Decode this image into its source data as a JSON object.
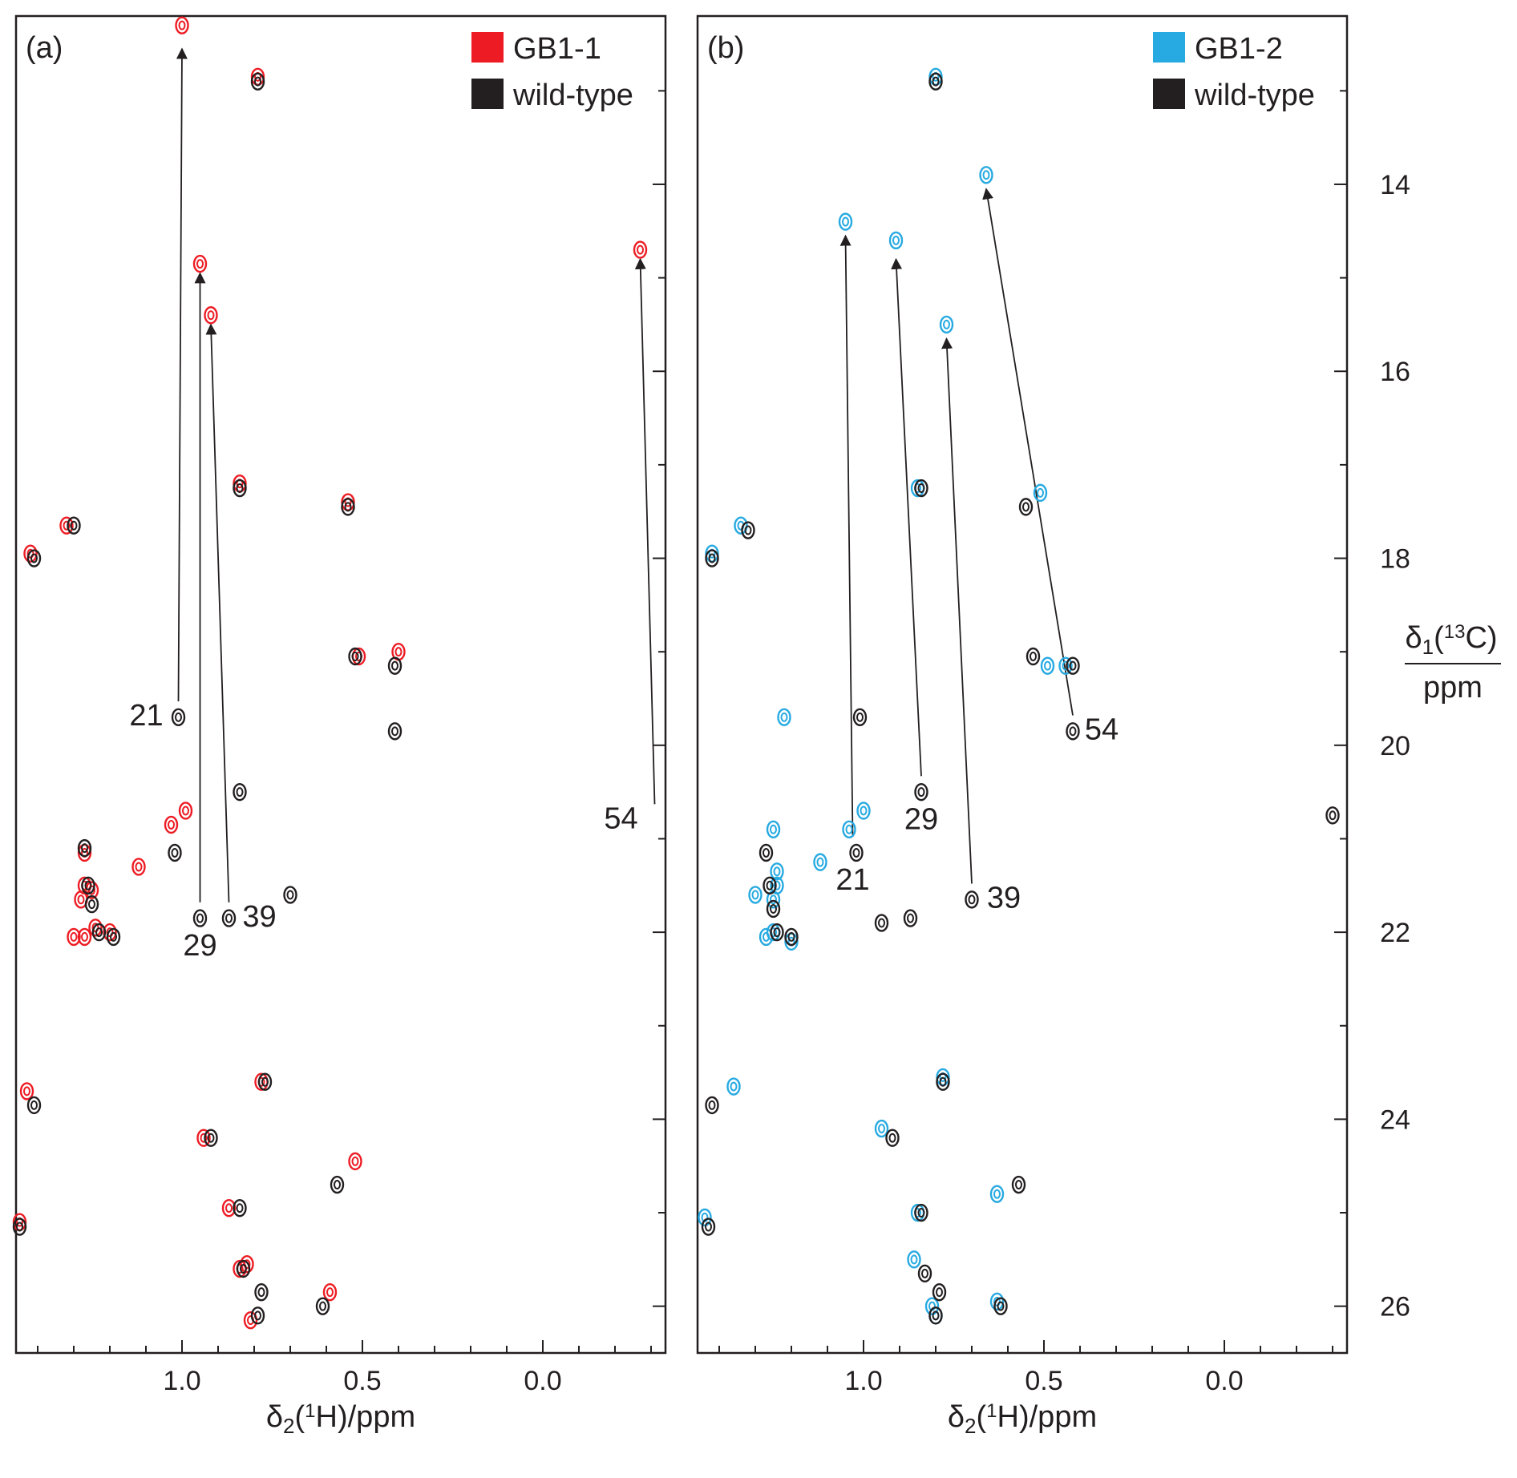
{
  "chart_data": [
    {
      "type": "scatter",
      "subtype": "2D NMR HSQC overlay",
      "panel_label": "(a)",
      "xlabel": "δ2(1H)/ppm",
      "x_ticks": [
        "1.0",
        "0.5",
        "0.0"
      ],
      "x_tick_values": [
        1.0,
        0.5,
        0.0
      ],
      "xlim": [
        1.46,
        -0.34
      ],
      "ylim": [
        12.2,
        26.5
      ],
      "x_reversed": true,
      "y_reversed": true,
      "legend_position": "top-right",
      "series": [
        {
          "name": "GB1-1",
          "color": "#ed1c24",
          "points": [
            [
              1.0,
              12.3
            ],
            [
              0.79,
              12.85
            ],
            [
              0.95,
              14.85
            ],
            [
              0.92,
              15.4
            ],
            [
              -0.27,
              14.7
            ],
            [
              0.84,
              17.2
            ],
            [
              0.54,
              17.4
            ],
            [
              1.32,
              17.65
            ],
            [
              1.42,
              17.95
            ],
            [
              0.51,
              19.05
            ],
            [
              0.4,
              19.0
            ],
            [
              1.03,
              20.85
            ],
            [
              0.99,
              20.7
            ],
            [
              1.27,
              21.15
            ],
            [
              1.12,
              21.3
            ],
            [
              1.27,
              21.5
            ],
            [
              1.28,
              21.65
            ],
            [
              1.25,
              21.55
            ],
            [
              1.27,
              22.05
            ],
            [
              1.3,
              22.05
            ],
            [
              1.2,
              22.0
            ],
            [
              1.24,
              21.95
            ],
            [
              1.43,
              23.7
            ],
            [
              0.78,
              23.6
            ],
            [
              0.94,
              24.2
            ],
            [
              0.52,
              24.45
            ],
            [
              0.87,
              24.95
            ],
            [
              0.84,
              25.6
            ],
            [
              0.82,
              25.55
            ],
            [
              0.59,
              25.85
            ],
            [
              0.81,
              26.15
            ],
            [
              1.45,
              25.1
            ]
          ]
        },
        {
          "name": "wild-type",
          "color": "#231f20",
          "points": [
            [
              0.79,
              12.9
            ],
            [
              0.84,
              17.25
            ],
            [
              0.54,
              17.45
            ],
            [
              1.3,
              17.65
            ],
            [
              1.41,
              18.0
            ],
            [
              0.52,
              19.05
            ],
            [
              0.41,
              19.15
            ],
            [
              0.41,
              19.85
            ],
            [
              1.01,
              19.7
            ],
            [
              0.84,
              20.5
            ],
            [
              1.02,
              21.15
            ],
            [
              1.27,
              21.1
            ],
            [
              0.7,
              21.6
            ],
            [
              1.26,
              21.5
            ],
            [
              1.25,
              21.7
            ],
            [
              0.95,
              21.85
            ],
            [
              0.87,
              21.85
            ],
            [
              1.23,
              22.0
            ],
            [
              1.19,
              22.05
            ],
            [
              1.41,
              23.85
            ],
            [
              0.77,
              23.6
            ],
            [
              0.92,
              24.2
            ],
            [
              0.57,
              24.7
            ],
            [
              0.84,
              24.95
            ],
            [
              0.83,
              25.6
            ],
            [
              0.78,
              25.85
            ],
            [
              0.61,
              26.0
            ],
            [
              0.79,
              26.1
            ],
            [
              1.45,
              25.15
            ]
          ]
        }
      ],
      "annotations": [
        {
          "text": "21",
          "from": [
            1.01,
            19.65
          ],
          "to": [
            1.0,
            12.55
          ]
        },
        {
          "text": "29",
          "from": [
            0.95,
            21.8
          ],
          "to": [
            0.95,
            14.95
          ]
        },
        {
          "text": "39",
          "from": [
            0.87,
            21.8
          ],
          "to": [
            0.92,
            15.5
          ]
        },
        {
          "text": "54",
          "from": [
            -0.31,
            20.75
          ],
          "to": [
            -0.27,
            14.8
          ]
        }
      ]
    },
    {
      "type": "scatter",
      "subtype": "2D NMR HSQC overlay",
      "panel_label": "(b)",
      "xlabel": "δ2(1H)/ppm",
      "ylabel": "δ1(13C)/ppm",
      "x_ticks": [
        "1.0",
        "0.5",
        "0.0"
      ],
      "x_tick_values": [
        1.0,
        0.5,
        0.0
      ],
      "y_ticks": [
        "14",
        "16",
        "18",
        "20",
        "22",
        "24",
        "26"
      ],
      "y_tick_values": [
        14,
        16,
        18,
        20,
        22,
        24,
        26
      ],
      "xlim": [
        1.46,
        -0.34
      ],
      "ylim": [
        12.2,
        26.5
      ],
      "x_reversed": true,
      "y_reversed": true,
      "legend_position": "top-right",
      "series": [
        {
          "name": "GB1-2",
          "color": "#27aae1",
          "points": [
            [
              0.8,
              12.85
            ],
            [
              0.66,
              13.9
            ],
            [
              1.05,
              14.4
            ],
            [
              0.91,
              14.6
            ],
            [
              0.77,
              15.5
            ],
            [
              0.85,
              17.25
            ],
            [
              0.51,
              17.3
            ],
            [
              1.34,
              17.65
            ],
            [
              1.42,
              17.95
            ],
            [
              0.49,
              19.15
            ],
            [
              0.44,
              19.15
            ],
            [
              1.22,
              19.7
            ],
            [
              1.04,
              20.9
            ],
            [
              1.0,
              20.7
            ],
            [
              1.25,
              20.9
            ],
            [
              1.24,
              21.35
            ],
            [
              1.24,
              21.5
            ],
            [
              1.25,
              21.65
            ],
            [
              1.12,
              21.25
            ],
            [
              1.27,
              22.05
            ],
            [
              1.25,
              22.0
            ],
            [
              1.2,
              22.1
            ],
            [
              1.3,
              21.6
            ],
            [
              1.36,
              23.65
            ],
            [
              0.78,
              23.55
            ],
            [
              0.95,
              24.1
            ],
            [
              0.63,
              24.8
            ],
            [
              0.85,
              25.0
            ],
            [
              0.86,
              25.5
            ],
            [
              0.81,
              26.0
            ],
            [
              0.8,
              26.1
            ],
            [
              0.63,
              25.95
            ],
            [
              1.44,
              25.05
            ]
          ]
        },
        {
          "name": "wild-type",
          "color": "#231f20",
          "points": [
            [
              0.8,
              12.9
            ],
            [
              0.84,
              17.25
            ],
            [
              0.55,
              17.45
            ],
            [
              1.32,
              17.7
            ],
            [
              1.42,
              18.0
            ],
            [
              0.53,
              19.05
            ],
            [
              0.42,
              19.15
            ],
            [
              0.42,
              19.85
            ],
            [
              1.01,
              19.7
            ],
            [
              0.84,
              20.5
            ],
            [
              1.02,
              21.15
            ],
            [
              1.27,
              21.15
            ],
            [
              0.7,
              21.65
            ],
            [
              1.26,
              21.5
            ],
            [
              1.25,
              21.75
            ],
            [
              0.95,
              21.9
            ],
            [
              0.87,
              21.85
            ],
            [
              1.24,
              22.0
            ],
            [
              1.2,
              22.05
            ],
            [
              1.42,
              23.85
            ],
            [
              0.78,
              23.6
            ],
            [
              0.92,
              24.2
            ],
            [
              0.57,
              24.7
            ],
            [
              0.84,
              25.0
            ],
            [
              0.83,
              25.65
            ],
            [
              0.79,
              25.85
            ],
            [
              0.62,
              26.0
            ],
            [
              0.8,
              26.1
            ],
            [
              -0.3,
              20.75
            ],
            [
              1.43,
              25.15
            ]
          ]
        }
      ],
      "annotations": [
        {
          "text": "21",
          "from": [
            1.03,
            21.1
          ],
          "to": [
            1.05,
            14.55
          ]
        },
        {
          "text": "29",
          "from": [
            0.84,
            20.45
          ],
          "to": [
            0.91,
            14.8
          ]
        },
        {
          "text": "39",
          "from": [
            0.7,
            21.6
          ],
          "to": [
            0.77,
            15.65
          ]
        },
        {
          "text": "54",
          "from": [
            0.42,
            19.8
          ],
          "to": [
            0.66,
            14.05
          ]
        }
      ]
    }
  ]
}
